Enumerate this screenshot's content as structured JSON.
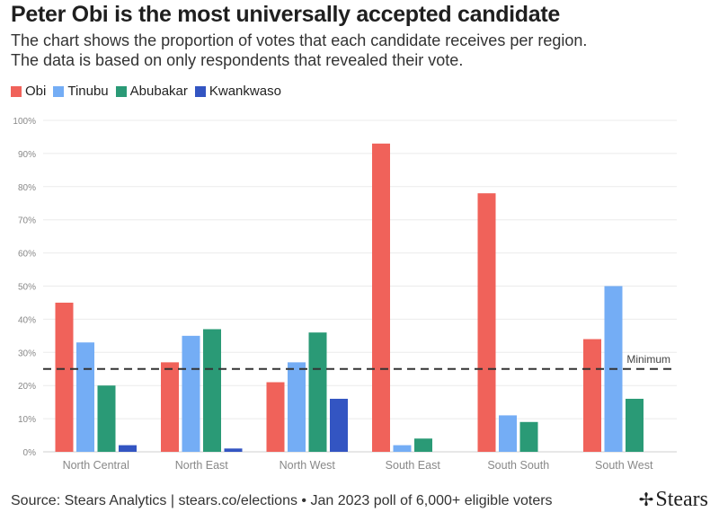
{
  "header": {
    "title": "Peter Obi is the most universally accepted candidate",
    "subtitle_line1": "The chart shows the proportion of votes that each candidate receives per region.",
    "subtitle_line2": "The data is based on only respondents that revealed their vote."
  },
  "colors": {
    "Obi": "#f0625a",
    "Tinubu": "#74adf5",
    "Abubakar": "#2a9a76",
    "Kwankwaso": "#3355c2"
  },
  "chart_data": {
    "type": "bar",
    "categories": [
      "North Central",
      "North East",
      "North West",
      "South East",
      "South South",
      "South West"
    ],
    "series": [
      {
        "name": "Obi",
        "values": [
          45,
          27,
          21,
          93,
          78,
          34
        ]
      },
      {
        "name": "Tinubu",
        "values": [
          33,
          35,
          27,
          2,
          11,
          50
        ]
      },
      {
        "name": "Abubakar",
        "values": [
          20,
          37,
          36,
          4,
          9,
          16
        ]
      },
      {
        "name": "Kwankwaso",
        "values": [
          2,
          1,
          16,
          0,
          0,
          0
        ]
      }
    ],
    "ylim": [
      0,
      100
    ],
    "yticks": [
      "0%",
      "10%",
      "20%",
      "30%",
      "40%",
      "50%",
      "60%",
      "70%",
      "80%",
      "90%",
      "100%"
    ],
    "reference_line": {
      "value": 25,
      "label": "Minimum",
      "style": "dashed"
    },
    "legend_position": "top-left",
    "grid": true
  },
  "footer": {
    "source": "Source: Stears Analytics | stears.co/elections • Jan 2023 poll of 6,000+ eligible voters",
    "brand": "Stears",
    "brand_icon": "sparkle-icon"
  }
}
